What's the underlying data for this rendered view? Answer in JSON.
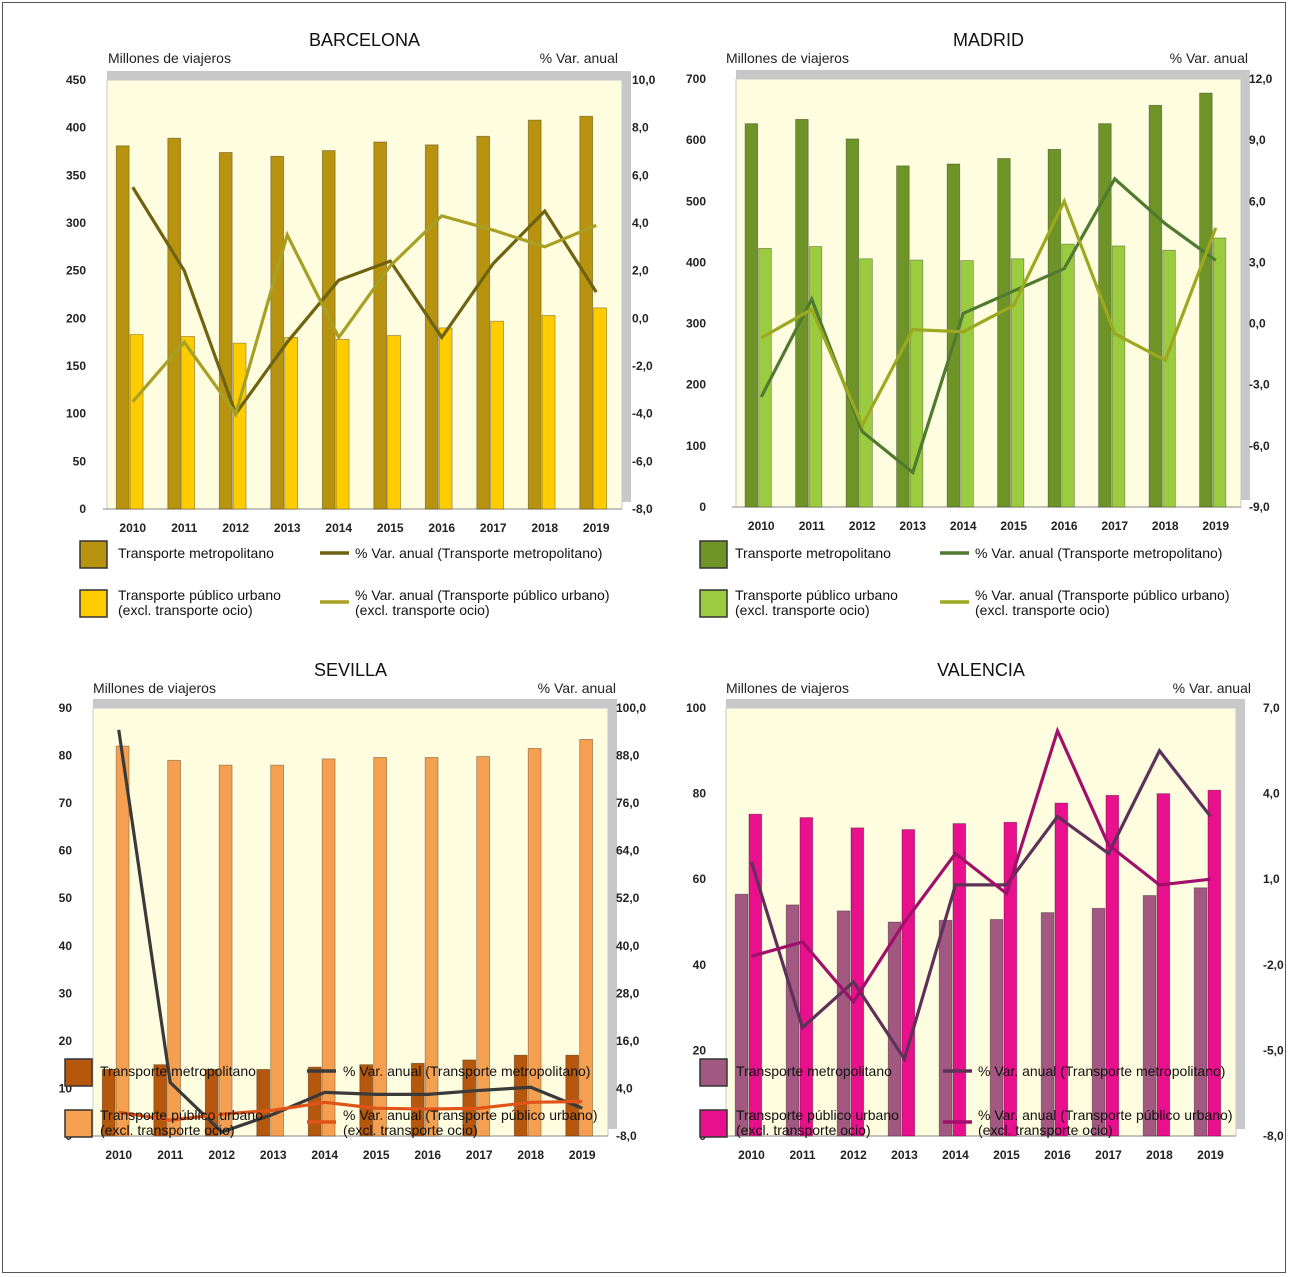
{
  "chart_data": [
    {
      "type": "bar",
      "title": "BARCELONA",
      "ylabel": "Millones de viajeros",
      "y2label": "% Var. anual",
      "categories": [
        "2010",
        "2011",
        "2012",
        "2013",
        "2014",
        "2015",
        "2016",
        "2017",
        "2018",
        "2019"
      ],
      "ylim": [
        0,
        450
      ],
      "yticks": [
        "0",
        "50",
        "100",
        "150",
        "200",
        "250",
        "300",
        "350",
        "400",
        "450"
      ],
      "y2lim": [
        -8,
        10
      ],
      "y2ticks": [
        "-8,0",
        "-6,0",
        "-4,0",
        "-2,0",
        "0,0",
        "2,0",
        "4,0",
        "6,0",
        "8,0",
        "10,0"
      ],
      "bar_series": [
        {
          "name": "Transporte metropolitano",
          "color": "#b8930f",
          "values": [
            381,
            389,
            374,
            370,
            376,
            385,
            382,
            391,
            408,
            412
          ]
        },
        {
          "name": "Transporte público urbano\n(excl. transporte ocio)",
          "color": "#ffcc00",
          "values": [
            183,
            181,
            174,
            180,
            178,
            182,
            190,
            197,
            203,
            211
          ]
        }
      ],
      "line_series": [
        {
          "name": "% Var. anual (Transporte metropolitano)",
          "color": "#6f6210",
          "values": [
            5.5,
            2.0,
            -4.0,
            -1.0,
            1.6,
            2.4,
            -0.8,
            2.3,
            4.5,
            1.1
          ]
        },
        {
          "name": "% Var. anual (Transporte público urbano)\n(excl. transporte ocio)",
          "color": "#a8a024",
          "values": [
            -3.5,
            -1.0,
            -4.0,
            3.5,
            -0.8,
            2.2,
            4.3,
            3.7,
            3.0,
            3.9
          ]
        }
      ]
    },
    {
      "type": "bar",
      "title": "MADRID",
      "ylabel": "Millones de viajeros",
      "y2label": "% Var. anual",
      "categories": [
        "2010",
        "2011",
        "2012",
        "2013",
        "2014",
        "2015",
        "2016",
        "2017",
        "2018",
        "2019"
      ],
      "ylim": [
        0,
        700
      ],
      "yticks": [
        "0",
        "100",
        "200",
        "300",
        "400",
        "500",
        "600",
        "700"
      ],
      "y2lim": [
        -9,
        12
      ],
      "y2ticks": [
        "-9,0",
        "-6,0",
        "-3,0",
        "0,0",
        "3,0",
        "6,0",
        "9,0",
        "12,0"
      ],
      "bar_series": [
        {
          "name": "Transporte metropolitano",
          "color": "#6e9428",
          "values": [
            627,
            634,
            602,
            558,
            561,
            570,
            585,
            627,
            657,
            677
          ]
        },
        {
          "name": "Transporte público urbano\n(excl. transporte ocio)",
          "color": "#9bcc40",
          "values": [
            423,
            426,
            406,
            404,
            403,
            406,
            430,
            427,
            420,
            440
          ]
        }
      ],
      "line_series": [
        {
          "name": "% Var. anual (Transporte metropolitano)",
          "color": "#4f7a30",
          "values": [
            -3.6,
            1.2,
            -5.3,
            -7.3,
            0.5,
            1.6,
            2.7,
            7.1,
            4.9,
            3.1
          ]
        },
        {
          "name": "% Var. anual (Transporte público urbano)\n(excl. transporte ocio)",
          "color": "#9ca820",
          "values": [
            -0.7,
            0.7,
            -5.0,
            -0.3,
            -0.4,
            0.9,
            6.0,
            -0.5,
            -1.8,
            4.7
          ]
        }
      ]
    },
    {
      "type": "bar",
      "title": "SEVILLA",
      "ylabel": "Millones de viajeros",
      "y2label": "% Var. anual",
      "categories": [
        "2010",
        "2011",
        "2012",
        "2013",
        "2014",
        "2015",
        "2016",
        "2017",
        "2018",
        "2019"
      ],
      "ylim": [
        0,
        90
      ],
      "yticks": [
        "0",
        "10",
        "20",
        "30",
        "40",
        "50",
        "60",
        "70",
        "80",
        "90"
      ],
      "y2lim": [
        -8,
        100
      ],
      "y2ticks": [
        "-8,0",
        "4,0",
        "16,0",
        "28,0",
        "40,0",
        "52,0",
        "64,0",
        "76,0",
        "88,0",
        "100,0"
      ],
      "bar_series": [
        {
          "name": "Transporte metropolitano",
          "color": "#b5580e",
          "values": [
            14,
            15,
            14,
            14,
            14.5,
            15,
            15.3,
            16,
            17,
            17
          ]
        },
        {
          "name": "Transporte público urbano\n(excl. transporte ocio)",
          "color": "#f5a050",
          "values": [
            82,
            79,
            78,
            78,
            79.3,
            79.6,
            79.6,
            79.8,
            81.5,
            83.4
          ]
        }
      ],
      "line_series": [
        {
          "name": "% Var. anual (Transporte metropolitano)",
          "color": "#3a3a3a",
          "values": [
            94.5,
            5.5,
            -7.0,
            -2.5,
            3.0,
            2.5,
            2.5,
            3.5,
            4.3,
            -1.0
          ]
        },
        {
          "name": "% Var. anual (Transporte público urbano)\n(excl. transporte ocio)",
          "color": "#e0541a",
          "values": [
            -2.0,
            -4.0,
            -2.5,
            -1.5,
            0.5,
            -1.0,
            -1.2,
            -1.0,
            0.5,
            0.7
          ]
        }
      ]
    },
    {
      "type": "bar",
      "title": "VALENCIA",
      "ylabel": "Millones de viajeros",
      "y2label": "% Var. anual",
      "categories": [
        "2010",
        "2011",
        "2012",
        "2013",
        "2014",
        "2015",
        "2016",
        "2017",
        "2018",
        "2019"
      ],
      "ylim": [
        0,
        100
      ],
      "yticks": [
        "0",
        "20",
        "40",
        "60",
        "80",
        "100"
      ],
      "y2lim": [
        -8,
        7
      ],
      "y2ticks": [
        "-8,0",
        "-5,0",
        "-2,0",
        "1,0",
        "4,0",
        "7,0"
      ],
      "bar_series": [
        {
          "name": "Transporte metropolitano",
          "color": "#a25880",
          "values": [
            56.5,
            54,
            52.6,
            50,
            50.4,
            50.6,
            52.2,
            53.2,
            56.2,
            58
          ]
        },
        {
          "name": "Transporte público urbano\n(excl. transporte ocio)",
          "color": "#e8108c",
          "values": [
            75.2,
            74.4,
            72,
            71.6,
            73,
            73.3,
            77.8,
            79.6,
            80,
            80.8
          ]
        }
      ],
      "line_series": [
        {
          "name": "% Var. anual (Transporte metropolitano)",
          "color": "#5e3258",
          "values": [
            1.6,
            -4.2,
            -2.6,
            -5.3,
            0.8,
            0.8,
            3.2,
            1.9,
            5.5,
            3.2
          ]
        },
        {
          "name": "% Var. anual (Transporte público urbano)\n(excl. transporte ocio)",
          "color": "#a0106a",
          "values": [
            -1.7,
            -1.2,
            -3.3,
            -0.5,
            1.9,
            0.5,
            6.2,
            2.2,
            0.8,
            1.0
          ]
        }
      ]
    }
  ]
}
